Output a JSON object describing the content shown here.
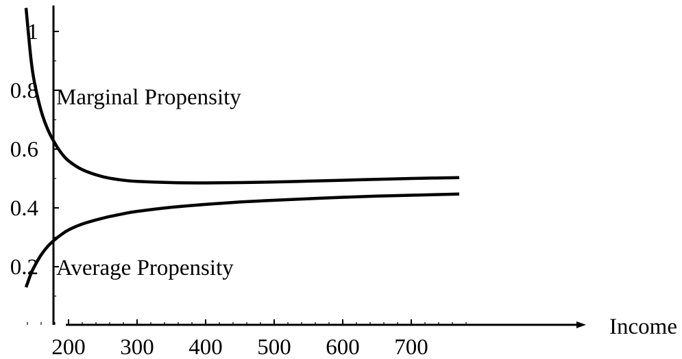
{
  "chart_data": {
    "type": "line",
    "title": "",
    "xlabel": "Income",
    "ylabel": "",
    "xlim": [
      100,
      790
    ],
    "ylim": [
      0,
      1.1
    ],
    "x_ticks": [
      200,
      300,
      400,
      500,
      600,
      700
    ],
    "x_tick_labels": [
      "200",
      "300",
      "400",
      "500",
      "600",
      "700"
    ],
    "y_ticks": [
      0.2,
      0.4,
      0.6,
      0.8,
      1
    ],
    "y_tick_labels": [
      "0.2",
      "0.4",
      "0.6",
      "0.8",
      "1"
    ],
    "grid": false,
    "legend": "none",
    "annotations": [
      {
        "text": "Marginal Propensity",
        "x": 182,
        "y": 0.78
      },
      {
        "text": "Average Propensity",
        "x": 182,
        "y": 0.2
      }
    ],
    "series": [
      {
        "x": [
          138,
          145,
          150,
          160,
          170,
          180,
          190,
          200,
          220,
          250,
          280,
          300,
          350,
          400,
          450,
          500,
          550,
          600,
          650,
          700,
          770
        ],
        "values": [
          1.08,
          0.91,
          0.83,
          0.73,
          0.665,
          0.62,
          0.585,
          0.56,
          0.53,
          0.506,
          0.494,
          0.49,
          0.486,
          0.485,
          0.486,
          0.488,
          0.491,
          0.494,
          0.497,
          0.5,
          0.503
        ]
      },
      {
        "x": [
          138,
          145,
          150,
          160,
          170,
          180,
          190,
          200,
          220,
          250,
          280,
          300,
          350,
          400,
          450,
          500,
          550,
          600,
          650,
          700,
          770
        ],
        "values": [
          0.13,
          0.175,
          0.2,
          0.24,
          0.27,
          0.292,
          0.31,
          0.325,
          0.345,
          0.365,
          0.38,
          0.388,
          0.402,
          0.412,
          0.42,
          0.426,
          0.431,
          0.436,
          0.44,
          0.443,
          0.447
        ]
      }
    ]
  }
}
